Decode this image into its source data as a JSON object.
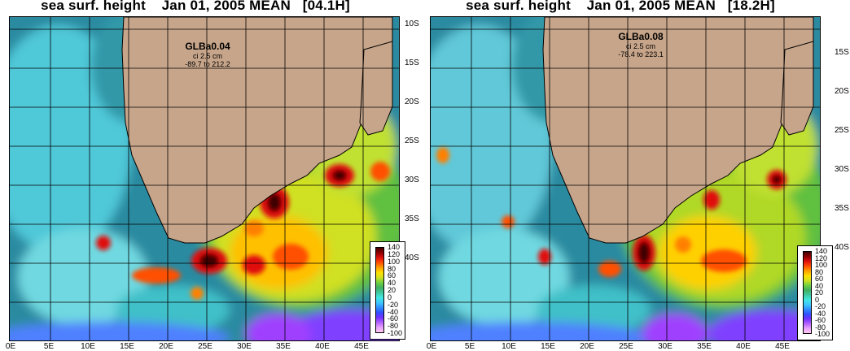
{
  "colors": {
    "land": "#c7a58a",
    "coast": "#000000",
    "grid": "#000000",
    "deep_cyan": "#2b8aa0",
    "colorbar": [
      "#ffc8f0",
      "#e7a0ff",
      "#b060ff",
      "#7030ff",
      "#3050ff",
      "#3090ff",
      "#40c8ff",
      "#40e8e0",
      "#40c8a0",
      "#40b060",
      "#70d040",
      "#d0e020",
      "#ffe000",
      "#ffa000",
      "#ff5000",
      "#e01010",
      "#900000",
      "#400000"
    ]
  },
  "panels": [
    {
      "title": "sea surf. height    Jan 01, 2005 MEAN   [04.1H]",
      "model": "GLBa0.04",
      "ci": "ci 2.5 cm",
      "range": "-89.7 to 212.2",
      "lat_ticks": [
        "10S",
        "15S",
        "20S",
        "25S",
        "30S",
        "35S",
        "40S"
      ],
      "lon_ticks": [
        "0E",
        "5E",
        "10E",
        "15E",
        "20E",
        "25E",
        "30E",
        "35E",
        "40E",
        "45E"
      ],
      "colorbar_ticks": [
        "140",
        "120",
        "100",
        "80",
        "60",
        "40",
        "20",
        "0",
        "-20",
        "-40",
        "-60",
        "-80",
        "-100"
      ]
    },
    {
      "title": "sea surf. height    Jan 01, 2005 MEAN   [18.2H]",
      "model": "GLBa0.08",
      "ci": "ci 2.5 cm",
      "range": "-78.4 to 223.1",
      "lat_ticks": [
        "15S",
        "20S",
        "25S",
        "30S",
        "35S",
        "40S"
      ],
      "lon_ticks": [
        "0E",
        "5E",
        "10E",
        "15E",
        "20E",
        "25E",
        "30E",
        "35E",
        "40E",
        "45E"
      ],
      "colorbar_ticks": [
        "140",
        "120",
        "100",
        "80",
        "60",
        "40",
        "20",
        "0",
        "-20",
        "-40",
        "-60",
        "-80",
        "-100"
      ]
    }
  ]
}
